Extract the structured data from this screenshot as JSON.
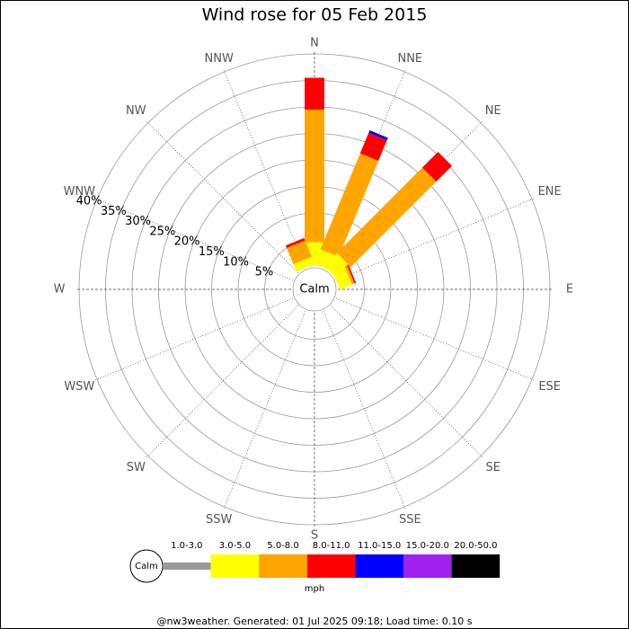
{
  "chart_data": {
    "type": "windrose",
    "title": "Wind rose for 05 Feb 2015",
    "categories": [
      "N",
      "NNE",
      "NE",
      "ENE",
      "E",
      "ESE",
      "SE",
      "SSE",
      "S",
      "SSW",
      "SW",
      "WSW",
      "W",
      "WNW",
      "NW",
      "NNW"
    ],
    "series": [
      {
        "name": "1.0-3.0",
        "color": "#999999",
        "values": [
          0,
          0,
          0,
          0,
          0,
          0,
          0,
          0,
          0,
          0,
          0,
          0,
          0,
          0,
          0,
          0
        ]
      },
      {
        "name": "3.0-5.0",
        "color": "#ffff00",
        "values": [
          4.5,
          3,
          3.4,
          2.5,
          0,
          0,
          0,
          0,
          0,
          0,
          0,
          0,
          0,
          0,
          0,
          1.5
        ]
      },
      {
        "name": "5.0-8.0",
        "color": "#ffa500",
        "values": [
          25,
          19.6,
          22.8,
          0.5,
          0,
          0,
          0,
          0,
          0,
          0,
          0,
          0,
          0,
          0,
          0,
          3.3
        ]
      },
      {
        "name": "8.0-11.0",
        "color": "#ff0000",
        "values": [
          6,
          4.2,
          4.2,
          0.3,
          0,
          0,
          0,
          0,
          0,
          0,
          0,
          0,
          0,
          0,
          0,
          0.5
        ]
      },
      {
        "name": "11.0-15.0",
        "color": "#0000ff",
        "values": [
          0,
          0.5,
          0,
          0,
          0,
          0,
          0,
          0,
          0,
          0,
          0,
          0,
          0,
          0,
          0,
          0
        ]
      },
      {
        "name": "15.0-20.0",
        "color": "#a020f0",
        "values": [
          0,
          0,
          0,
          0,
          0,
          0,
          0,
          0,
          0,
          0,
          0,
          0,
          0,
          0,
          0,
          0
        ]
      },
      {
        "name": "20.0-50.0",
        "color": "#000000",
        "values": [
          0,
          0,
          0,
          0,
          0,
          0,
          0,
          0,
          0,
          0,
          0,
          0,
          0,
          0,
          0,
          0
        ]
      }
    ],
    "rlim": [
      0,
      40
    ],
    "rticks": [
      {
        "value": 5,
        "label": "5%"
      },
      {
        "value": 10,
        "label": "10%"
      },
      {
        "value": 15,
        "label": "15%"
      },
      {
        "value": 20,
        "label": "20%"
      },
      {
        "value": 25,
        "label": "25%"
      },
      {
        "value": 30,
        "label": "30%"
      },
      {
        "value": 35,
        "label": "35%"
      },
      {
        "value": 40,
        "label": "40%"
      }
    ],
    "calm_label": "Calm",
    "legend_title": "mph",
    "footer": "@nw3weather. Generated: 01 Jul 2025 09:18; Load time: 0.10 s"
  }
}
